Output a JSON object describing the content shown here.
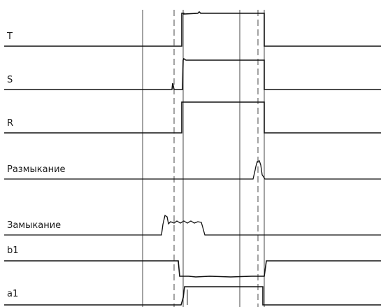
{
  "diagram": {
    "channels": [
      {
        "id": "T",
        "label": "T"
      },
      {
        "id": "S",
        "label": "S"
      },
      {
        "id": "R",
        "label": "R"
      },
      {
        "id": "razmykanie",
        "label": "Размыкание"
      },
      {
        "id": "zamykanie",
        "label": "Замыкание"
      },
      {
        "id": "b1",
        "label": "b1"
      },
      {
        "id": "a1",
        "label": "a1"
      }
    ],
    "colors": {
      "trace": "#111111",
      "marker": "#333333",
      "background": "#ffffff"
    }
  }
}
